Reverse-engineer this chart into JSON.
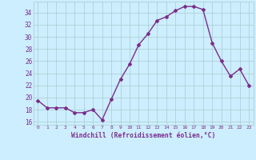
{
  "x": [
    0,
    1,
    2,
    3,
    4,
    5,
    6,
    7,
    8,
    9,
    10,
    11,
    12,
    13,
    14,
    15,
    16,
    17,
    18,
    19,
    20,
    21,
    22,
    23
  ],
  "y": [
    19.5,
    18.3,
    18.3,
    18.3,
    17.5,
    17.5,
    18.0,
    16.3,
    19.7,
    23.0,
    25.5,
    28.7,
    30.5,
    32.7,
    33.3,
    34.3,
    35.0,
    35.0,
    34.5,
    29.0,
    26.0,
    23.5,
    24.7,
    22.0
  ],
  "line_color": "#7b2d8b",
  "marker": "D",
  "markersize": 2.0,
  "linewidth": 1.0,
  "bg_color": "#cceeff",
  "grid_color": "#aacccc",
  "xlabel": "Windchill (Refroidissement éolien,°C)",
  "xlabel_color": "#7b2d8b",
  "tick_color": "#7b2d8b",
  "ylim": [
    15.5,
    35.8
  ],
  "yticks": [
    16,
    18,
    20,
    22,
    24,
    26,
    28,
    30,
    32,
    34
  ],
  "xticks": [
    0,
    1,
    2,
    3,
    4,
    5,
    6,
    7,
    8,
    9,
    10,
    11,
    12,
    13,
    14,
    15,
    16,
    17,
    18,
    19,
    20,
    21,
    22,
    23
  ],
  "xlim": [
    -0.5,
    23.5
  ]
}
